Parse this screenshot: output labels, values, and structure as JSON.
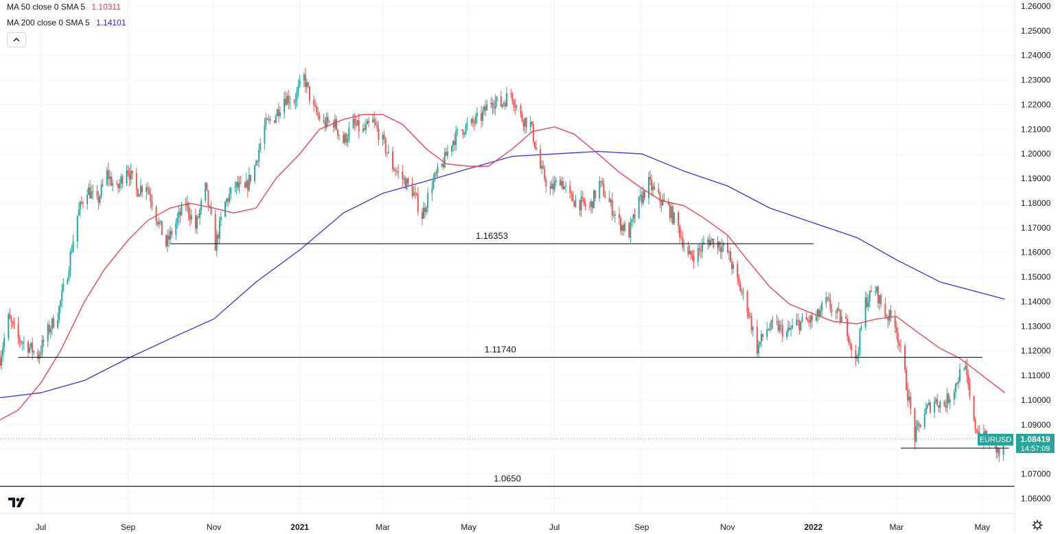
{
  "legend": {
    "ma50": {
      "label": "MA 50 close 0 SMA 5",
      "value": "1.10311",
      "color": "#f23645"
    },
    "ma200": {
      "label": "MA 200 close 0 SMA 5",
      "value": "1.14101",
      "color": "#2b2bd9"
    }
  },
  "colors": {
    "up": "#26a69a",
    "down": "#ef5350",
    "ma50": "#f23645",
    "ma200": "#3232e0",
    "grid": "#f0f3fa",
    "axis_text": "#131722",
    "price_tag": "#26a69a",
    "level": "#131722"
  },
  "price_tag": {
    "symbol": "EURUSD",
    "price": "1.08419",
    "countdown": "14:57:09"
  },
  "chart_data": {
    "type": "candlestick",
    "symbol": "EURUSD",
    "y_ticks": [
      "1.06000",
      "1.07000",
      "1.08000",
      "1.09000",
      "1.10000",
      "1.11000",
      "1.12000",
      "1.13000",
      "1.14000",
      "1.15000",
      "1.16000",
      "1.17000",
      "1.18000",
      "1.19000",
      "1.20000",
      "1.21000",
      "1.22000",
      "1.23000",
      "1.24000",
      "1.25000",
      "1.26000"
    ],
    "ylim": [
      1.054,
      1.2625
    ],
    "x_ticks": [
      {
        "label": "Jul",
        "date": "2020-07-01",
        "bold": false
      },
      {
        "label": "Sep",
        "date": "2020-09-01",
        "bold": false
      },
      {
        "label": "Nov",
        "date": "2020-11-01",
        "bold": false
      },
      {
        "label": "2021",
        "date": "2021-01-01",
        "bold": true
      },
      {
        "label": "Mar",
        "date": "2021-03-01",
        "bold": false
      },
      {
        "label": "May",
        "date": "2021-05-01",
        "bold": false
      },
      {
        "label": "Jul",
        "date": "2021-07-01",
        "bold": false
      },
      {
        "label": "Sep",
        "date": "2021-09-01",
        "bold": false
      },
      {
        "label": "Nov",
        "date": "2021-11-01",
        "bold": false
      },
      {
        "label": "2022",
        "date": "2022-01-01",
        "bold": true
      },
      {
        "label": "Mar",
        "date": "2022-03-01",
        "bold": false
      },
      {
        "label": "May",
        "date": "2022-05-01",
        "bold": false
      }
    ],
    "xlim": [
      "2020-06-02",
      "2022-05-24"
    ],
    "last_price": 1.08419,
    "close_path": [
      [
        "2020-06-02",
        1.117
      ],
      [
        "2020-06-08",
        1.133
      ],
      [
        "2020-06-15",
        1.125
      ],
      [
        "2020-06-22",
        1.122
      ],
      [
        "2020-06-29",
        1.118
      ],
      [
        "2020-07-06",
        1.128
      ],
      [
        "2020-07-13",
        1.135
      ],
      [
        "2020-07-20",
        1.152
      ],
      [
        "2020-07-27",
        1.175
      ],
      [
        "2020-08-03",
        1.186
      ],
      [
        "2020-08-10",
        1.18
      ],
      [
        "2020-08-17",
        1.192
      ],
      [
        "2020-08-24",
        1.185
      ],
      [
        "2020-08-31",
        1.195
      ],
      [
        "2020-09-07",
        1.185
      ],
      [
        "2020-09-14",
        1.188
      ],
      [
        "2020-09-21",
        1.175
      ],
      [
        "2020-09-28",
        1.163
      ],
      [
        "2020-10-05",
        1.172
      ],
      [
        "2020-10-12",
        1.18
      ],
      [
        "2020-10-19",
        1.17
      ],
      [
        "2020-10-26",
        1.186
      ],
      [
        "2020-11-02",
        1.163
      ],
      [
        "2020-11-09",
        1.18
      ],
      [
        "2020-11-16",
        1.187
      ],
      [
        "2020-11-23",
        1.185
      ],
      [
        "2020-11-30",
        1.195
      ],
      [
        "2020-12-07",
        1.211
      ],
      [
        "2020-12-14",
        1.215
      ],
      [
        "2020-12-21",
        1.223
      ],
      [
        "2020-12-28",
        1.222
      ],
      [
        "2021-01-04",
        1.231
      ],
      [
        "2021-01-11",
        1.218
      ],
      [
        "2021-01-18",
        1.212
      ],
      [
        "2021-01-25",
        1.213
      ],
      [
        "2021-02-01",
        1.205
      ],
      [
        "2021-02-08",
        1.212
      ],
      [
        "2021-02-15",
        1.209
      ],
      [
        "2021-02-22",
        1.213
      ],
      [
        "2021-03-01",
        1.205
      ],
      [
        "2021-03-08",
        1.195
      ],
      [
        "2021-03-15",
        1.19
      ],
      [
        "2021-03-22",
        1.185
      ],
      [
        "2021-03-29",
        1.175
      ],
      [
        "2021-04-05",
        1.188
      ],
      [
        "2021-04-12",
        1.195
      ],
      [
        "2021-04-19",
        1.205
      ],
      [
        "2021-04-26",
        1.21
      ],
      [
        "2021-05-03",
        1.212
      ],
      [
        "2021-05-10",
        1.215
      ],
      [
        "2021-05-17",
        1.222
      ],
      [
        "2021-05-24",
        1.22
      ],
      [
        "2021-05-31",
        1.225
      ],
      [
        "2021-06-07",
        1.215
      ],
      [
        "2021-06-14",
        1.212
      ],
      [
        "2021-06-21",
        1.194
      ],
      [
        "2021-06-28",
        1.185
      ],
      [
        "2021-07-05",
        1.19
      ],
      [
        "2021-07-12",
        1.182
      ],
      [
        "2021-07-19",
        1.18
      ],
      [
        "2021-07-26",
        1.178
      ],
      [
        "2021-08-02",
        1.188
      ],
      [
        "2021-08-09",
        1.18
      ],
      [
        "2021-08-16",
        1.172
      ],
      [
        "2021-08-23",
        1.168
      ],
      [
        "2021-08-30",
        1.18
      ],
      [
        "2021-09-06",
        1.188
      ],
      [
        "2021-09-13",
        1.182
      ],
      [
        "2021-09-20",
        1.178
      ],
      [
        "2021-09-27",
        1.17
      ],
      [
        "2021-10-04",
        1.158
      ],
      [
        "2021-10-11",
        1.16
      ],
      [
        "2021-10-18",
        1.165
      ],
      [
        "2021-10-25",
        1.164
      ],
      [
        "2021-11-01",
        1.16
      ],
      [
        "2021-11-08",
        1.148
      ],
      [
        "2021-11-15",
        1.138
      ],
      [
        "2021-11-22",
        1.121
      ],
      [
        "2021-11-29",
        1.129
      ],
      [
        "2021-12-06",
        1.13
      ],
      [
        "2021-12-13",
        1.127
      ],
      [
        "2021-12-20",
        1.131
      ],
      [
        "2021-12-27",
        1.132
      ],
      [
        "2022-01-03",
        1.133
      ],
      [
        "2022-01-10",
        1.14
      ],
      [
        "2022-01-17",
        1.135
      ],
      [
        "2022-01-24",
        1.131
      ],
      [
        "2022-01-31",
        1.115
      ],
      [
        "2022-02-07",
        1.14
      ],
      [
        "2022-02-14",
        1.145
      ],
      [
        "2022-02-21",
        1.135
      ],
      [
        "2022-02-28",
        1.132
      ],
      [
        "2022-03-07",
        1.11
      ],
      [
        "2022-03-14",
        1.085
      ],
      [
        "2022-03-21",
        1.095
      ],
      [
        "2022-03-28",
        1.1
      ],
      [
        "2022-04-04",
        1.098
      ],
      [
        "2022-04-11",
        1.105
      ],
      [
        "2022-04-18",
        1.115
      ],
      [
        "2022-04-25",
        1.09
      ],
      [
        "2022-05-02",
        1.085
      ],
      [
        "2022-05-09",
        1.082
      ],
      [
        "2022-05-13",
        1.078
      ],
      [
        "2022-05-17",
        1.084
      ]
    ],
    "ma50": [
      [
        "2020-06-02",
        1.092
      ],
      [
        "2020-06-15",
        1.096
      ],
      [
        "2020-07-01",
        1.107
      ],
      [
        "2020-07-15",
        1.12
      ],
      [
        "2020-08-01",
        1.14
      ],
      [
        "2020-08-15",
        1.153
      ],
      [
        "2020-09-01",
        1.165
      ],
      [
        "2020-09-15",
        1.173
      ],
      [
        "2020-10-01",
        1.178
      ],
      [
        "2020-10-15",
        1.18
      ],
      [
        "2020-11-01",
        1.178
      ],
      [
        "2020-11-15",
        1.176
      ],
      [
        "2020-12-01",
        1.178
      ],
      [
        "2020-12-15",
        1.19
      ],
      [
        "2021-01-01",
        1.2
      ],
      [
        "2021-01-15",
        1.21
      ],
      [
        "2021-02-01",
        1.214
      ],
      [
        "2021-02-15",
        1.216
      ],
      [
        "2021-03-01",
        1.216
      ],
      [
        "2021-03-15",
        1.212
      ],
      [
        "2021-04-01",
        1.202
      ],
      [
        "2021-04-15",
        1.196
      ],
      [
        "2021-05-01",
        1.195
      ],
      [
        "2021-05-15",
        1.195
      ],
      [
        "2021-06-01",
        1.202
      ],
      [
        "2021-06-15",
        1.209
      ],
      [
        "2021-07-01",
        1.211
      ],
      [
        "2021-07-15",
        1.208
      ],
      [
        "2021-08-01",
        1.2
      ],
      [
        "2021-08-15",
        1.193
      ],
      [
        "2021-09-01",
        1.186
      ],
      [
        "2021-09-15",
        1.181
      ],
      [
        "2021-10-01",
        1.179
      ],
      [
        "2021-10-15",
        1.174
      ],
      [
        "2021-11-01",
        1.167
      ],
      [
        "2021-11-15",
        1.157
      ],
      [
        "2021-12-01",
        1.146
      ],
      [
        "2021-12-15",
        1.139
      ],
      [
        "2022-01-01",
        1.135
      ],
      [
        "2022-01-15",
        1.132
      ],
      [
        "2022-02-01",
        1.131
      ],
      [
        "2022-02-15",
        1.133
      ],
      [
        "2022-03-01",
        1.134
      ],
      [
        "2022-03-15",
        1.128
      ],
      [
        "2022-04-01",
        1.121
      ],
      [
        "2022-04-15",
        1.117
      ],
      [
        "2022-05-01",
        1.11
      ],
      [
        "2022-05-17",
        1.103
      ]
    ],
    "ma200": [
      [
        "2020-06-02",
        1.101
      ],
      [
        "2020-07-01",
        1.103
      ],
      [
        "2020-08-01",
        1.108
      ],
      [
        "2020-09-01",
        1.117
      ],
      [
        "2020-10-01",
        1.125
      ],
      [
        "2020-11-01",
        1.133
      ],
      [
        "2020-12-01",
        1.148
      ],
      [
        "2021-01-01",
        1.161
      ],
      [
        "2021-02-01",
        1.176
      ],
      [
        "2021-03-01",
        1.184
      ],
      [
        "2021-04-01",
        1.189
      ],
      [
        "2021-05-01",
        1.194
      ],
      [
        "2021-06-01",
        1.199
      ],
      [
        "2021-07-01",
        1.2
      ],
      [
        "2021-08-01",
        1.201
      ],
      [
        "2021-09-01",
        1.2
      ],
      [
        "2021-10-01",
        1.193
      ],
      [
        "2021-11-01",
        1.187
      ],
      [
        "2021-12-01",
        1.178
      ],
      [
        "2022-01-01",
        1.172
      ],
      [
        "2022-02-01",
        1.166
      ],
      [
        "2022-03-01",
        1.157
      ],
      [
        "2022-04-01",
        1.148
      ],
      [
        "2022-05-17",
        1.141
      ]
    ],
    "levels": [
      {
        "label": "1.16353",
        "value": 1.16353,
        "from": "2020-10-01",
        "to": "2022-01-01"
      },
      {
        "label": "1.11740",
        "value": 1.1174,
        "from": "2020-06-15",
        "to": "2022-05-01"
      },
      {
        "label": "1.0650",
        "value": 1.065,
        "from": "2020-06-02",
        "to": "2022-05-24"
      },
      {
        "label": "",
        "value": 1.0805,
        "from": "2022-03-04",
        "to": "2022-05-20"
      }
    ],
    "x_rendered_until": "2022-05-18"
  }
}
